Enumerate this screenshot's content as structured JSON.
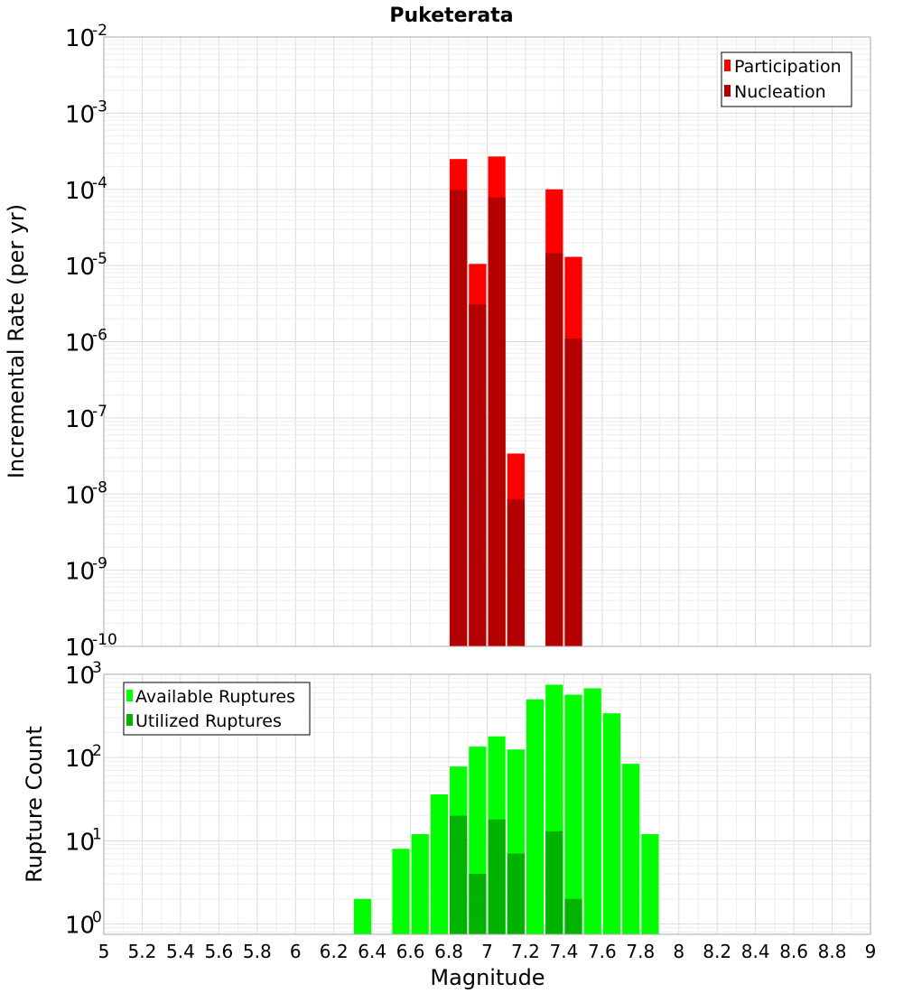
{
  "chart_data": [
    {
      "type": "bar",
      "panel": "top",
      "title": "Puketerata",
      "xlabel": "Magnitude",
      "ylabel": "Incremental Rate (per yr)",
      "yscale": "log",
      "ylim": [
        1e-10,
        0.01
      ],
      "xlim": [
        5,
        9
      ],
      "bin_width": 0.1,
      "legend_position": "top-right",
      "series": [
        {
          "name": "Participation",
          "color": "#ff0000",
          "x": [
            6.85,
            6.95,
            7.05,
            7.15,
            7.35,
            7.45
          ],
          "values": [
            0.00025,
            1.05e-05,
            0.00027,
            3.4e-08,
            0.0001,
            1.3e-05
          ]
        },
        {
          "name": "Nucleation",
          "color": "#b30000",
          "x": [
            6.85,
            6.95,
            7.05,
            7.15,
            7.35,
            7.45
          ],
          "values": [
            9.8e-05,
            3.1e-06,
            7.8e-05,
            8.5e-09,
            1.45e-05,
            1.1e-06
          ]
        }
      ],
      "y_ticks": [
        {
          "base": "10",
          "exp": "-2",
          "value": 0.01
        },
        {
          "base": "10",
          "exp": "-3",
          "value": 0.001
        },
        {
          "base": "10",
          "exp": "-4",
          "value": 0.0001
        },
        {
          "base": "10",
          "exp": "-5",
          "value": 1e-05
        },
        {
          "base": "10",
          "exp": "-6",
          "value": 1e-06
        },
        {
          "base": "10",
          "exp": "-7",
          "value": 1e-07
        },
        {
          "base": "10",
          "exp": "-8",
          "value": 1e-08
        },
        {
          "base": "10",
          "exp": "-9",
          "value": 1e-09
        },
        {
          "base": "10",
          "exp": "-10",
          "value": 1e-10
        }
      ]
    },
    {
      "type": "bar",
      "panel": "bottom",
      "xlabel": "Magnitude",
      "ylabel": "Rupture Count",
      "yscale": "log",
      "ylim": [
        0.75,
        1000
      ],
      "xlim": [
        5,
        9
      ],
      "bin_width": 0.1,
      "legend_position": "top-left",
      "series": [
        {
          "name": "Available Ruptures",
          "color": "#00ff00",
          "x": [
            6.35,
            6.55,
            6.65,
            6.75,
            6.85,
            6.95,
            7.05,
            7.15,
            7.25,
            7.35,
            7.45,
            7.55,
            7.65,
            7.75,
            7.85
          ],
          "values": [
            2,
            8,
            12,
            36,
            78,
            135,
            180,
            125,
            500,
            750,
            570,
            680,
            340,
            84,
            12
          ]
        },
        {
          "name": "Utilized Ruptures",
          "color": "#00b300",
          "x": [
            6.85,
            6.95,
            7.05,
            7.15,
            7.35,
            7.45
          ],
          "values": [
            20,
            4,
            18,
            7,
            13,
            2
          ]
        }
      ],
      "y_ticks": [
        {
          "base": "10",
          "exp": "3",
          "value": 1000
        },
        {
          "base": "10",
          "exp": "2",
          "value": 100
        },
        {
          "base": "10",
          "exp": "1",
          "value": 10
        },
        {
          "base": "10",
          "exp": "0",
          "value": 1
        }
      ],
      "x_ticks": [
        "5",
        "5.2",
        "5.4",
        "5.6",
        "5.8",
        "6",
        "6.2",
        "6.4",
        "6.6",
        "6.8",
        "7",
        "7.2",
        "7.4",
        "7.6",
        "7.8",
        "8",
        "8.2",
        "8.4",
        "8.6",
        "8.8",
        "9"
      ]
    }
  ]
}
